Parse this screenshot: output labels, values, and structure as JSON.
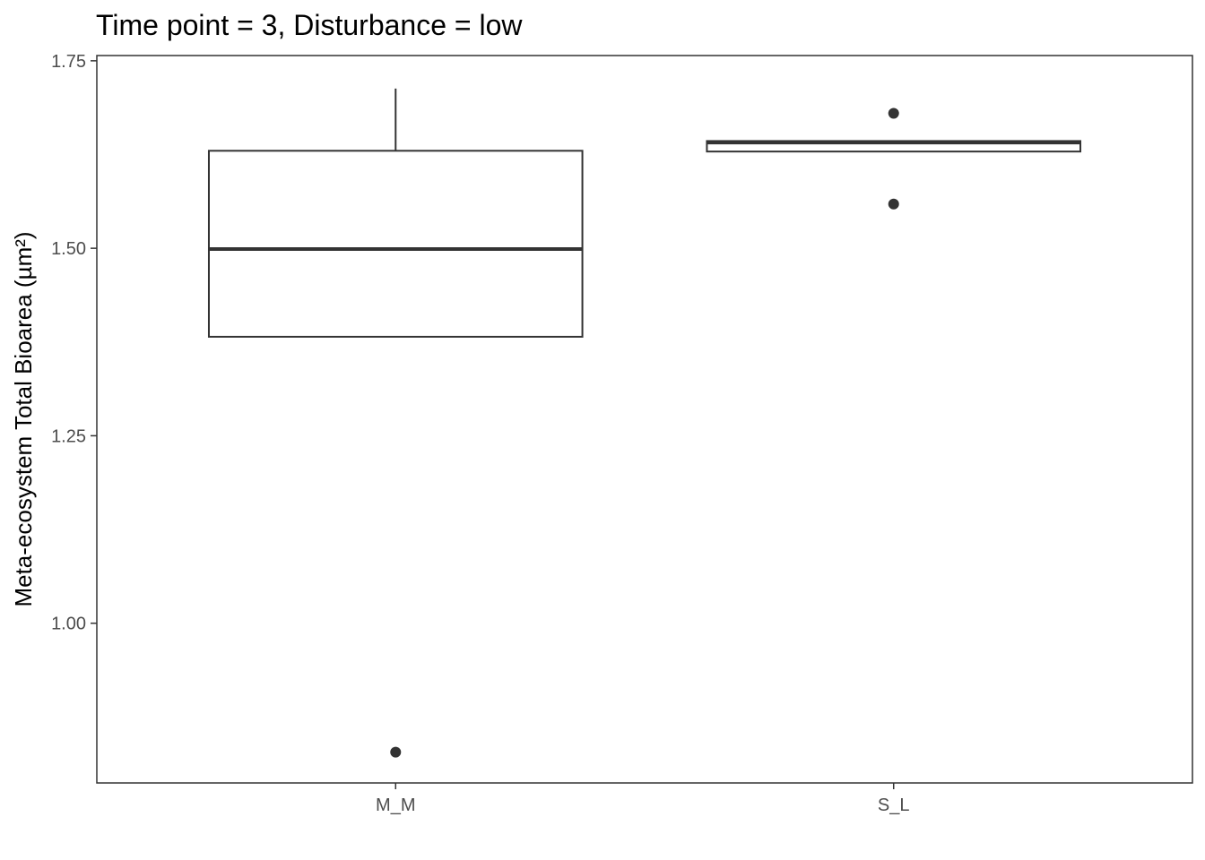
{
  "chart_data": {
    "type": "boxplot",
    "title": "Time point = 3, Disturbance = low",
    "xlabel": "",
    "ylabel": "Meta-ecosystem Total Bioarea (µm²)",
    "ylim": [
      0.787,
      1.757
    ],
    "yticks": [
      1.0,
      1.25,
      1.5,
      1.75
    ],
    "ytick_labels": [
      "1.00",
      "1.25",
      "1.50",
      "1.75"
    ],
    "grid": false,
    "categories": [
      "M_M",
      "S_L"
    ],
    "boxes": [
      {
        "category": "M_M",
        "lower_whisker": 1.382,
        "q1": 1.382,
        "median": 1.499,
        "q3": 1.63,
        "upper_whisker": 1.713,
        "outliers": [
          0.828
        ]
      },
      {
        "category": "S_L",
        "lower_whisker": 1.629,
        "q1": 1.629,
        "median": 1.641,
        "q3": 1.643,
        "upper_whisker": 1.643,
        "outliers": [
          1.68,
          1.559
        ]
      }
    ],
    "colors": {
      "line": "#333333",
      "fill": "#ffffff",
      "panel_border": "#333333",
      "tick_text": "#4d4d4d"
    }
  }
}
